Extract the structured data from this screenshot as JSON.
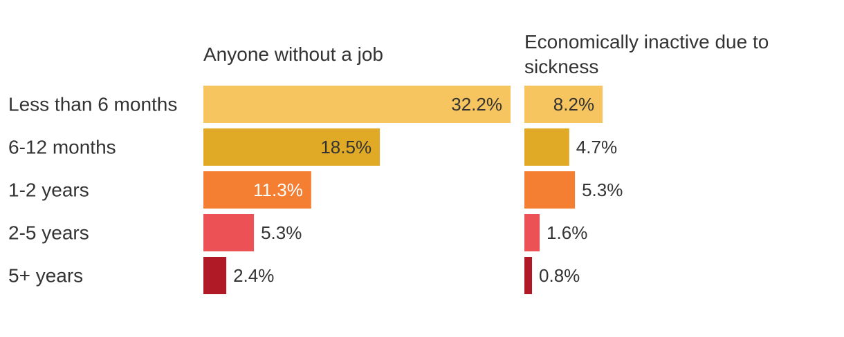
{
  "chart_data": {
    "type": "bar",
    "orientation": "horizontal",
    "categories": [
      "Less than 6 months",
      "6-12 months",
      "1-2 years",
      "2-5 years",
      "5+ years"
    ],
    "unit": "%",
    "series": [
      {
        "name": "Anyone without a job",
        "values": [
          32.2,
          18.5,
          11.3,
          5.3,
          2.4
        ]
      },
      {
        "name": "Economically inactive due to sickness",
        "values": [
          8.2,
          4.7,
          5.3,
          1.6,
          0.8
        ]
      }
    ],
    "category_colors": [
      "#f6c55f",
      "#e0aa27",
      "#f47f33",
      "#ec5155",
      "#b01a27"
    ],
    "label_colors": {
      "inside": "#333333",
      "inside_dark_bar": "#ffffff",
      "outside": "#333333"
    },
    "xlim": [
      0,
      32.2
    ],
    "legend": "none",
    "grid": false
  },
  "titles": {
    "left_line1": "Anyone without a job",
    "right_line1": "Economically inactive due to",
    "right_line2": "sickness"
  }
}
